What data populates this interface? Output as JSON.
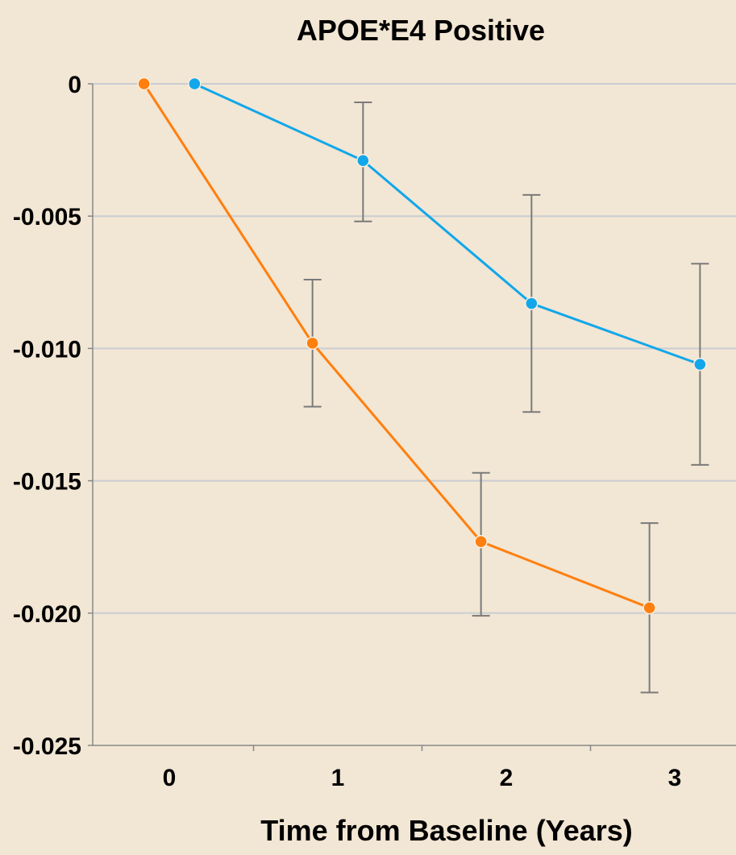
{
  "colors": {
    "background": "#f2e6d4",
    "series_blue": "#12a7ea",
    "series_orange": "#ff7f0e",
    "error_bar": "#7a7a7a",
    "grid": "#c9cdd2"
  },
  "chart_data": {
    "type": "line",
    "title": "APOE*E4 Positive",
    "xlabel": "Time from Baseline (Years)",
    "ylabel": "",
    "xlim": [
      -0.5,
      3.35
    ],
    "ylim": [
      -0.025,
      0
    ],
    "x_ticks": [
      0,
      1,
      2,
      3
    ],
    "x_tick_labels": [
      "0",
      "1",
      "2",
      "3"
    ],
    "y_ticks": [
      0,
      -0.005,
      -0.01,
      -0.015,
      -0.02,
      -0.025
    ],
    "y_tick_labels": [
      "0",
      "-0.005",
      "-0.010",
      "-0.015",
      "-0.020",
      "-0.025"
    ],
    "grid": "horizontal",
    "legend": "none",
    "series": [
      {
        "color": "#12a7ea",
        "points": [
          {
            "x": 0.15,
            "y": 0.0
          },
          {
            "x": 1.15,
            "y": -0.0029,
            "err_low": -0.0052,
            "err_high": -0.0007
          },
          {
            "x": 2.15,
            "y": -0.0083,
            "err_low": -0.0124,
            "err_high": -0.0042
          },
          {
            "x": 3.15,
            "y": -0.0106,
            "err_low": -0.0144,
            "err_high": -0.0068
          }
        ]
      },
      {
        "color": "#ff7f0e",
        "points": [
          {
            "x": -0.15,
            "y": 0.0
          },
          {
            "x": 0.85,
            "y": -0.0098,
            "err_low": -0.0122,
            "err_high": -0.0074
          },
          {
            "x": 1.85,
            "y": -0.0173,
            "err_low": -0.0201,
            "err_high": -0.0147
          },
          {
            "x": 2.85,
            "y": -0.0198,
            "err_low": -0.023,
            "err_high": -0.0166
          }
        ]
      }
    ]
  }
}
